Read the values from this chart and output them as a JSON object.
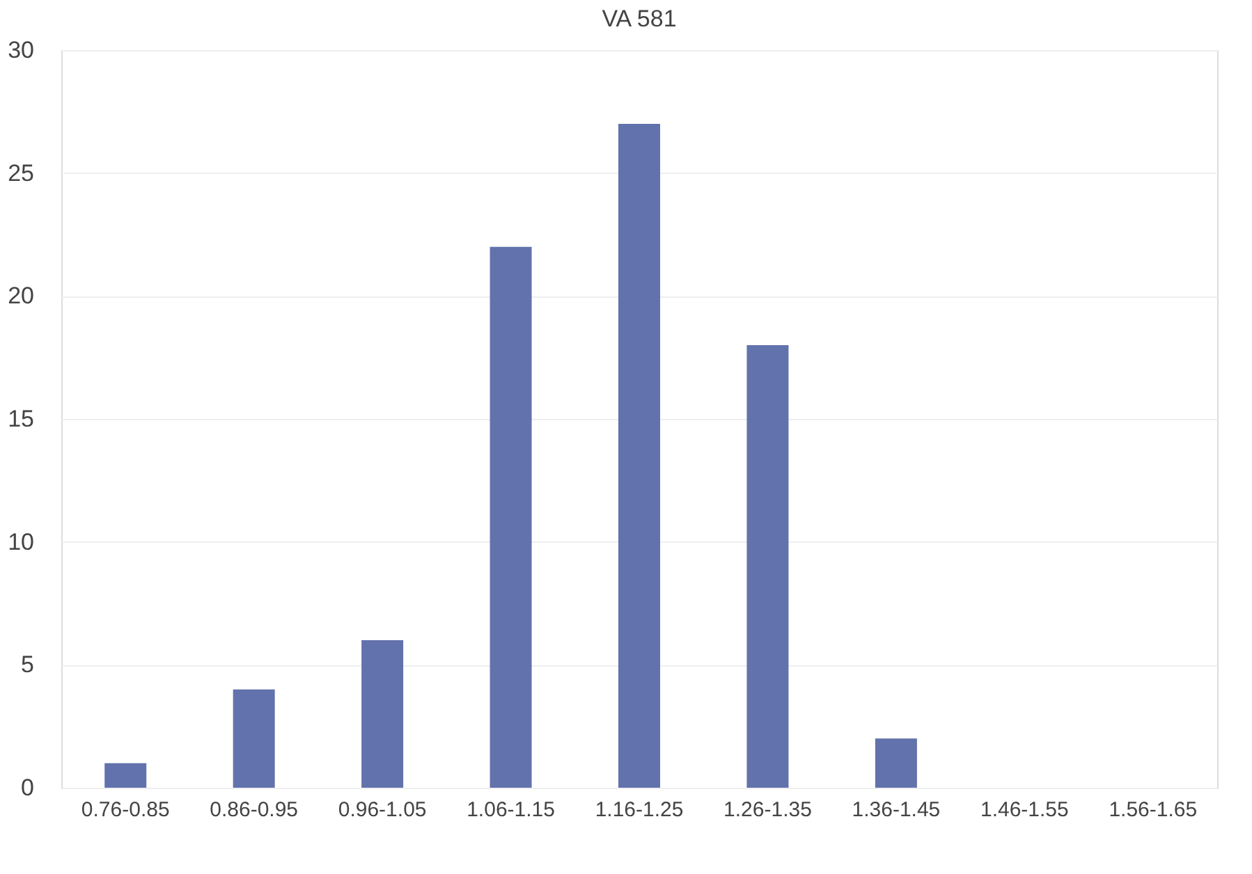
{
  "chart_data": {
    "type": "bar",
    "title": "VA 581",
    "categories": [
      "0.76-0.85",
      "0.86-0.95",
      "0.96-1.05",
      "1.06-1.15",
      "1.16-1.25",
      "1.26-1.35",
      "1.36-1.45",
      "1.46-1.55",
      "1.56-1.65"
    ],
    "values": [
      1,
      4,
      6,
      22,
      27,
      18,
      2,
      0,
      0
    ],
    "color": "#6272ad",
    "ylim": [
      0,
      30
    ],
    "yticks": [
      0,
      5,
      10,
      15,
      20,
      25,
      30
    ],
    "grid": "y"
  }
}
